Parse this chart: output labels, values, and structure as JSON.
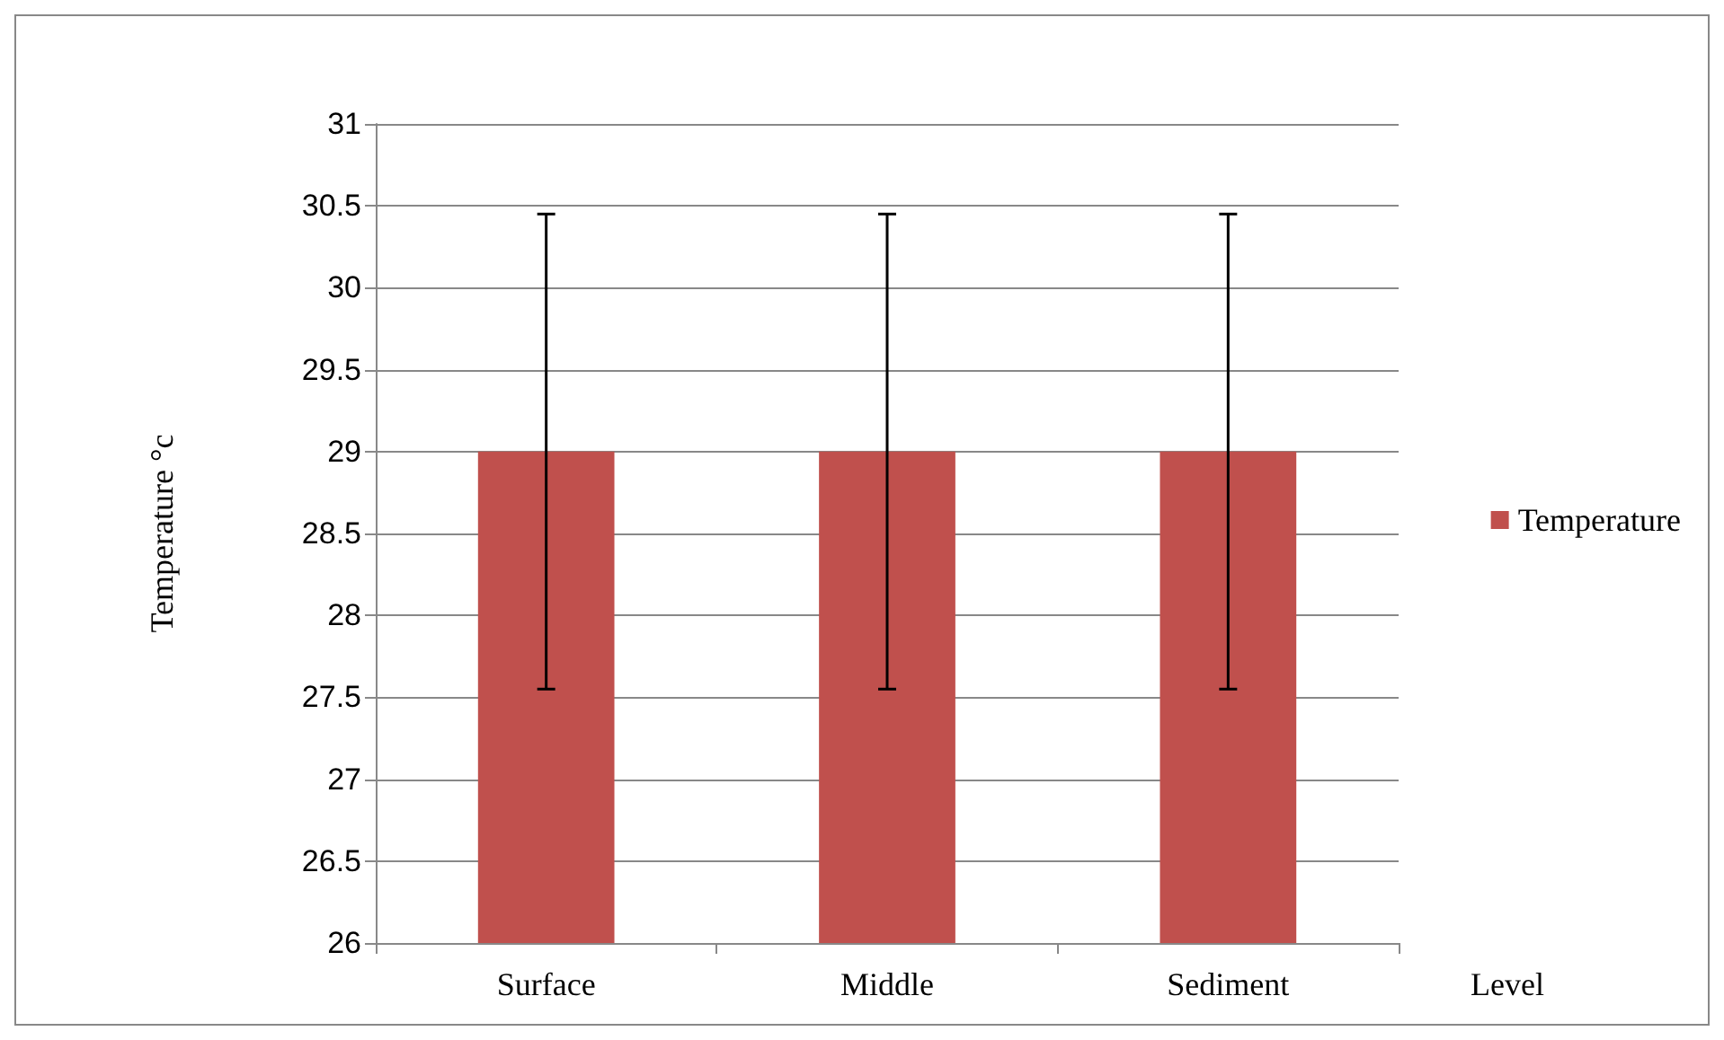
{
  "chart_data": {
    "type": "bar",
    "categories": [
      "Surface",
      "Middle",
      "Sediment"
    ],
    "series": [
      {
        "name": "Temperature",
        "color": "#c0504d",
        "values": [
          29,
          29,
          29
        ],
        "errors": [
          1.45,
          1.45,
          1.45
        ]
      }
    ],
    "xlabel": "Level",
    "ylabel": "Temperature °c",
    "ylim": [
      26,
      31
    ],
    "yticks": [
      26,
      26.5,
      27,
      27.5,
      28,
      28.5,
      29,
      29.5,
      30,
      30.5,
      31
    ],
    "grid": "y",
    "legend": "right"
  }
}
